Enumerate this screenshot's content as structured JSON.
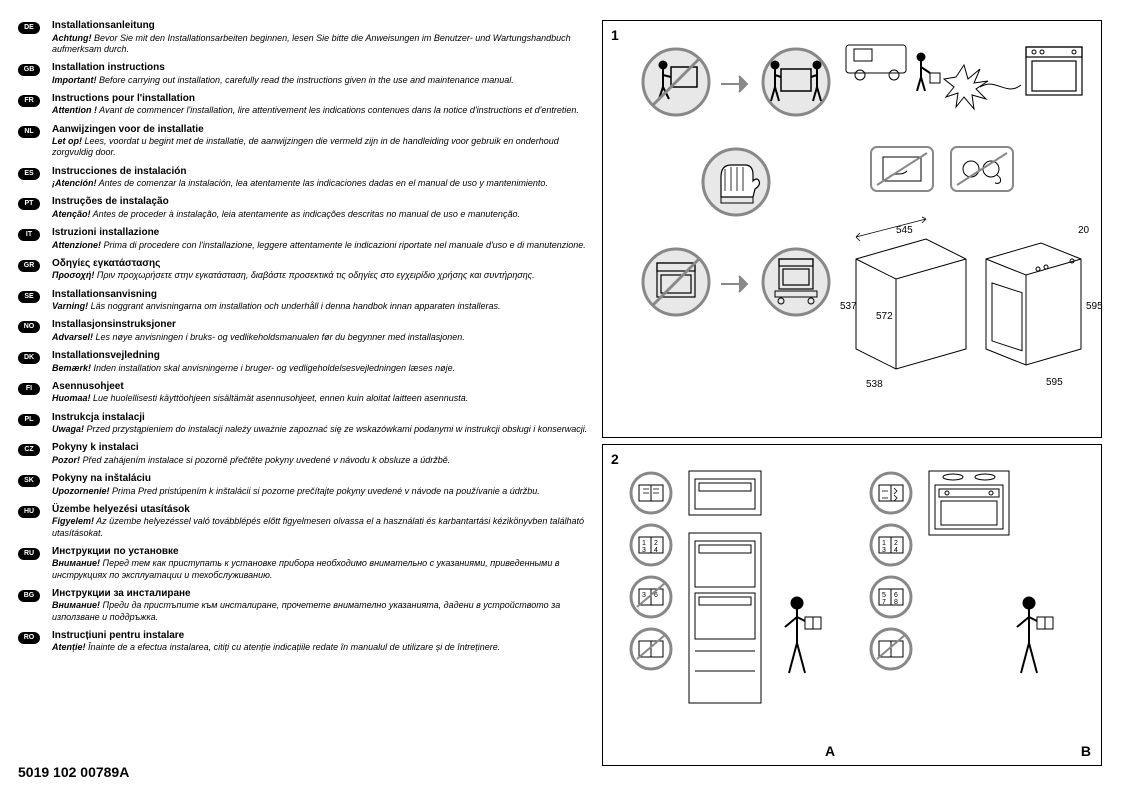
{
  "langs": [
    {
      "code": "DE",
      "title": "Installationsanleitung",
      "warn": "Achtung!",
      "body": " Bevor Sie mit den Installationsarbeiten beginnen, lesen Sie bitte die Anweisungen im Benutzer- und Wartungshandbuch aufmerksam durch."
    },
    {
      "code": "GB",
      "title": "Installation instructions",
      "warn": "Important!",
      "body": " Before carrying out installation, carefully read the instructions given in the use and maintenance manual."
    },
    {
      "code": "FR",
      "title": "Instructions pour l'installation",
      "warn": "Attention !",
      "body": " Avant de commencer l'installation, lire attentivement les indications contenues dans la notice d'instructions et d'entretien."
    },
    {
      "code": "NL",
      "title": "Aanwijzingen voor de installatie",
      "warn": "Let op!",
      "body": " Lees, voordat u begint met de installatie, de aanwijzingen die vermeld zijn in de handleiding voor gebruik en onderhoud zorgvuldig door."
    },
    {
      "code": "ES",
      "title": "Instrucciones de instalación",
      "warn": "¡Atención!",
      "body": " Antes de comenzar la instalación, lea atentamente las indicaciones dadas en el manual de uso y mantenimiento."
    },
    {
      "code": "PT",
      "title": "Instruções de instalação",
      "warn": "Atenção!",
      "body": " Antes de proceder à instalação, leia atentamente as indicações descritas no manual de uso e manutenção."
    },
    {
      "code": "IT",
      "title": "Istruzioni installazione",
      "warn": "Attenzione!",
      "body": " Prima di procedere con l'installazione, leggere attentamente le indicazioni riportate nel manuale d'uso e di manutenzione."
    },
    {
      "code": "GR",
      "title": "Οδηγίες εγκατάστασης",
      "warn": "Προσοχή!",
      "body": " Πριν προχωρήσετε στην εγκατάσταση, διαβάστε προσεκτικά τις οδηγίες στο εγχειρίδιο χρήσης και συντήρησης."
    },
    {
      "code": "SE",
      "title": "Installationsanvisning",
      "warn": "Varning!",
      "body": " Läs noggrant anvisningarna om installation och underhåll i denna handbok innan apparaten installeras."
    },
    {
      "code": "NO",
      "title": "Installasjonsinstruksjoner",
      "warn": "Advarsel!",
      "body": " Les nøye anvisningen i bruks- og vedlikeholdsmanualen før du begynner med installasjonen."
    },
    {
      "code": "DK",
      "title": "Installationsvejledning",
      "warn": "Bemærk!",
      "body": " Inden installation skal anvisningerne i bruger- og vedligeholdelsesvejledningen læses nøje."
    },
    {
      "code": "FI",
      "title": "Asennusohjeet",
      "warn": "Huomaa!",
      "body": " Lue huolellisesti käyttöohjeen sisältämät asennusohjeet, ennen kuin aloitat laitteen asennusta."
    },
    {
      "code": "PL",
      "title": "Instrukcja instalacji",
      "warn": "Uwaga!",
      "body": " Przed przystąpieniem do instalacji należy uważnie zapoznać się ze wskazówkami podanymi w instrukcji obsługi i konserwacji."
    },
    {
      "code": "CZ",
      "title": "Pokyny k instalaci",
      "warn": "Pozor!",
      "body": " Před zahájením instalace si pozorně přečtěte pokyny uvedené v návodu k obsluze a údržbě."
    },
    {
      "code": "SK",
      "title": "Pokyny na inštaláciu",
      "warn": "Upozornenie!",
      "body": " Prima Pred pristúpením k inštalácii si pozorne prečítajte pokyny uvedené v návode na používanie a údržbu."
    },
    {
      "code": "HU",
      "title": "Üzembe helyezési utasítások",
      "warn": "Figyelem!",
      "body": " Az üzembe helyezéssel való továbblépés előtt figyelmesen olvassa el a használati és karbantartási kézikönyvben található utasításokat."
    },
    {
      "code": "RU",
      "title": "Инструкции по установке",
      "warn": "Внимание!",
      "body": " Перед тем как приступать к установке прибора необходимо внимательно с указаниями, приведенными в инструкциях по эксплуатации и техобслуживанию."
    },
    {
      "code": "BG",
      "title": "Инструкции за инсталиране",
      "warn": "Внимание!",
      "body": " Преди да пристъпите към инсталиране, прочетете внимателно указанията, дадени в устройството за използване и поддръжка."
    },
    {
      "code": "RO",
      "title": "Instrucțiuni pentru instalare",
      "warn": "Atenție!",
      "body": " Înainte de a efectua instalarea, citiți cu atenție indicațiile redate în manualul de utilizare și de întreținere."
    }
  ],
  "footer": "5019 102 00789A",
  "panel1_num": "1",
  "panel2_num": "2",
  "label_a": "A",
  "label_b": "B",
  "dims": {
    "w_front": "545",
    "d_top": "20",
    "h_left": "537",
    "h_mid": "572",
    "h_right": "595",
    "w_bottom_l": "538",
    "w_bottom_r": "595"
  },
  "colors": {
    "circle_gray": "#888888",
    "circle_fill": "#e8e8e8",
    "black": "#000000",
    "white": "#ffffff"
  }
}
